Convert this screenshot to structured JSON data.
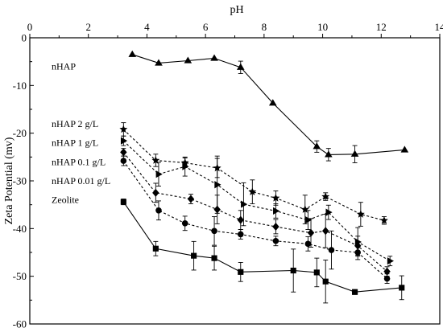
{
  "chart_data": {
    "type": "scatter",
    "title": "",
    "xlabel": "pH",
    "ylabel": "Zeta Potential (mv)",
    "xlim": [
      0,
      14
    ],
    "ylim": [
      -60,
      0
    ],
    "xticks": [
      0,
      2,
      4,
      6,
      8,
      10,
      12,
      14
    ],
    "yticks": [
      0,
      -10,
      -20,
      -30,
      -40,
      -50,
      -60
    ],
    "x_axis_position": "top",
    "grid": false,
    "series": [
      {
        "name": "nHAP",
        "marker": "triangle",
        "line": "solid",
        "x": [
          3.5,
          4.4,
          5.4,
          6.3,
          7.2,
          8.3,
          9.8,
          10.2,
          11.1,
          12.8
        ],
        "y": [
          -3.5,
          -5.3,
          -4.8,
          -4.3,
          -6.2,
          -13.7,
          -22.8,
          -24.5,
          -24.4,
          -23.5
        ],
        "err": [
          0,
          0,
          0,
          0,
          1.3,
          0,
          1.2,
          1.3,
          1.8,
          0
        ]
      },
      {
        "name": "nHAP 2 g/L",
        "marker": "star",
        "line": "dashed",
        "x": [
          3.2,
          4.3,
          5.3,
          6.4,
          7.6,
          8.4,
          9.4,
          10.1,
          11.3,
          12.1
        ],
        "y": [
          -19.2,
          -25.7,
          -26.2,
          -27.3,
          -32.3,
          -33.6,
          -36.0,
          -33.3,
          -37.0,
          -38.3
        ],
        "err": [
          1.4,
          1.3,
          1.0,
          2.0,
          2.5,
          1.5,
          3.0,
          0.8,
          2.5,
          0.8
        ]
      },
      {
        "name": "nHAP 1 g/L",
        "marker": "triangle-right",
        "line": "dashed",
        "x": [
          3.2,
          4.4,
          5.3,
          6.4,
          7.3,
          8.4,
          9.5,
          10.2,
          11.2,
          12.3
        ],
        "y": [
          -21.6,
          -28.6,
          -27.0,
          -30.8,
          -34.9,
          -36.3,
          -38.2,
          -36.6,
          -42.8,
          -46.8
        ],
        "err": [
          1.0,
          2.5,
          2.0,
          6.0,
          4.5,
          1.5,
          2.0,
          1.5,
          3.0,
          1.0
        ]
      },
      {
        "name": "nHAP 0.1 g/L",
        "marker": "diamond",
        "line": "dashed",
        "x": [
          3.2,
          4.3,
          5.5,
          6.4,
          7.2,
          8.4,
          9.6,
          10.1,
          11.2,
          12.2
        ],
        "y": [
          -24.0,
          -32.5,
          -33.8,
          -36.0,
          -38.2,
          -39.6,
          -40.9,
          -40.5,
          -43.6,
          -49.0
        ],
        "err": [
          0.8,
          2.0,
          1.0,
          3.0,
          2.0,
          1.5,
          3.0,
          3.5,
          2.0,
          1.0
        ]
      },
      {
        "name": "nHAP 0.01 g/L",
        "marker": "circle",
        "line": "dashed",
        "x": [
          3.2,
          4.4,
          5.3,
          6.3,
          7.2,
          8.4,
          9.5,
          10.3,
          11.2,
          12.2
        ],
        "y": [
          -25.8,
          -36.2,
          -38.9,
          -40.5,
          -41.2,
          -42.6,
          -43.2,
          -44.5,
          -45.0,
          -50.5
        ],
        "err": [
          1.0,
          2.0,
          1.5,
          3.0,
          1.0,
          1.0,
          1.5,
          4.0,
          1.5,
          1.0
        ]
      },
      {
        "name": "Zeolite",
        "marker": "square",
        "line": "solid",
        "x": [
          3.2,
          4.3,
          5.6,
          6.3,
          7.2,
          9.0,
          9.8,
          10.1,
          11.1,
          12.7
        ],
        "y": [
          -34.4,
          -44.2,
          -45.7,
          -46.2,
          -49.1,
          -48.8,
          -49.2,
          -51.1,
          -53.3,
          -52.4
        ],
        "err": [
          0.6,
          1.5,
          3.0,
          2.5,
          2.0,
          4.5,
          3.0,
          4.5,
          0.5,
          2.5
        ]
      }
    ],
    "labels": [
      {
        "text": "nHAP",
        "y": -6
      },
      {
        "text": "nHAP 2 g/L",
        "y": -18
      },
      {
        "text": "nHAP 1 g/L",
        "y": -22
      },
      {
        "text": "nHAP 0.1 g/L",
        "y": -26
      },
      {
        "text": "nHAP 0.01 g/L",
        "y": -30
      },
      {
        "text": "Zeolite",
        "y": -34
      }
    ]
  }
}
